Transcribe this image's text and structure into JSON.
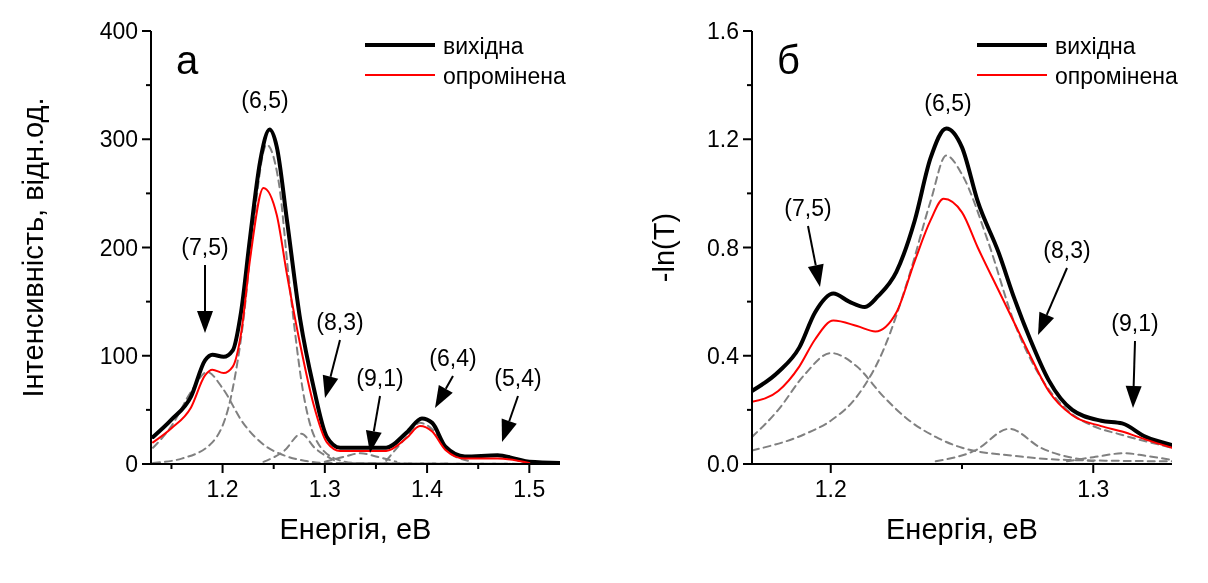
{
  "chart_data": [
    {
      "type": "line",
      "title": "а",
      "xlabel": "Енергія, еВ",
      "ylabel": "Інтенсивність, відн.од.",
      "xlim": [
        1.13,
        1.53
      ],
      "ylim": [
        0,
        400
      ],
      "xticks": [
        {
          "value": 1.15,
          "label": null
        },
        1.2,
        {
          "value": 1.25,
          "label": null
        },
        1.3,
        {
          "value": 1.35,
          "label": null
        },
        1.4,
        {
          "value": 1.45,
          "label": null
        },
        1.5
      ],
      "yticks": [
        0,
        {
          "value": 50,
          "label": null
        },
        100,
        {
          "value": 150,
          "label": null
        },
        200,
        {
          "value": 250,
          "label": null
        },
        300,
        {
          "value": 350,
          "label": null
        },
        400
      ],
      "legend": "top right",
      "series": [
        {
          "type": "line",
          "line_style": "dashed",
          "color": "#808080",
          "x": [
            1.132,
            1.15,
            1.17,
            1.185,
            1.2,
            1.22,
            1.24,
            1.26,
            1.28,
            1.3,
            1.53
          ],
          "values": [
            15,
            35,
            68,
            85,
            70,
            38,
            18,
            8,
            3,
            1,
            0
          ]
        },
        {
          "type": "line",
          "line_style": "dashed",
          "color": "#808080",
          "x": [
            1.132,
            1.16,
            1.19,
            1.21,
            1.22,
            1.23,
            1.243,
            1.255,
            1.265,
            1.28,
            1.29,
            1.31,
            1.33,
            1.53
          ],
          "values": [
            1,
            5,
            20,
            70,
            130,
            220,
            295,
            260,
            170,
            60,
            25,
            5,
            1,
            0
          ]
        },
        {
          "type": "line",
          "line_style": "dashed",
          "color": "#808080",
          "x": [
            1.24,
            1.26,
            1.277,
            1.29,
            1.31
          ],
          "values": [
            2,
            12,
            28,
            15,
            3
          ]
        },
        {
          "type": "line",
          "line_style": "dashed",
          "color": "#808080",
          "x": [
            1.3,
            1.32,
            1.335,
            1.35,
            1.37
          ],
          "values": [
            2,
            7,
            10,
            7,
            2
          ]
        },
        {
          "type": "line",
          "line_style": "dashed",
          "color": "#808080",
          "x": [
            1.36,
            1.38,
            1.393,
            1.405,
            1.42,
            1.44
          ],
          "values": [
            3,
            25,
            38,
            32,
            12,
            3
          ]
        },
        {
          "type": "line",
          "name": "вихідна",
          "color": "#000000",
          "x": [
            1.132,
            1.15,
            1.169,
            1.183,
            1.19,
            1.201,
            1.21,
            1.218,
            1.227,
            1.237,
            1.246,
            1.253,
            1.263,
            1.276,
            1.289,
            1.302,
            1.315,
            1.341,
            1.36,
            1.38,
            1.395,
            1.405,
            1.418,
            1.437,
            1.469,
            1.486,
            1.5,
            1.53
          ],
          "values": [
            25,
            41,
            62,
            96,
            101,
            99,
            105,
            140,
            210,
            281,
            309,
            293,
            225,
            133,
            71,
            25,
            15,
            15,
            15,
            29,
            42,
            38,
            16,
            7,
            8,
            5,
            2,
            1
          ]
        },
        {
          "type": "line",
          "name": "опромінена",
          "color": "#ff0000",
          "x": [
            1.132,
            1.15,
            1.169,
            1.183,
            1.19,
            1.201,
            1.21,
            1.218,
            1.227,
            1.24,
            1.253,
            1.263,
            1.276,
            1.289,
            1.302,
            1.315,
            1.341,
            1.36,
            1.38,
            1.393,
            1.405,
            1.418,
            1.437,
            1.469,
            1.5
          ],
          "values": [
            20,
            33,
            52,
            82,
            87,
            84,
            90,
            120,
            190,
            255,
            230,
            175,
            110,
            55,
            20,
            12,
            12,
            12,
            24,
            35,
            30,
            13,
            5,
            5,
            1
          ]
        }
      ],
      "annotations": [
        "(7,5)",
        "(6,5)",
        "(8,3)",
        "(9,1)",
        "(6,4)",
        "(5,4)"
      ]
    },
    {
      "type": "line",
      "title": "б",
      "xlabel": "Енергія, еВ",
      "ylabel": "-ln(T)",
      "xlim": [
        1.17,
        1.33
      ],
      "ylim": [
        0,
        1.6
      ],
      "xticks": [
        1.2,
        {
          "value": 1.25,
          "label": null
        },
        1.3
      ],
      "yticks": [
        {
          "value": 0,
          "label": "0.0"
        },
        {
          "value": 0.2,
          "label": null
        },
        0.4,
        {
          "value": 0.6,
          "label": null
        },
        0.8,
        {
          "value": 1,
          "label": null
        },
        1.2,
        {
          "value": 1.4,
          "label": null
        },
        1.6
      ],
      "legend": "top right",
      "series": [
        {
          "type": "line",
          "line_style": "dashed",
          "color": "#808080",
          "x": [
            1.17,
            1.18,
            1.19,
            1.2,
            1.21,
            1.22,
            1.23,
            1.24,
            1.25,
            1.27,
            1.29,
            1.33
          ],
          "values": [
            0.1,
            0.2,
            0.33,
            0.41,
            0.36,
            0.25,
            0.16,
            0.1,
            0.06,
            0.03,
            0.015,
            0.01
          ]
        },
        {
          "type": "line",
          "line_style": "dashed",
          "color": "#808080",
          "x": [
            1.17,
            1.19,
            1.2,
            1.21,
            1.22,
            1.23,
            1.238,
            1.244,
            1.25,
            1.26,
            1.27,
            1.28,
            1.29,
            1.3,
            1.31,
            1.33
          ],
          "values": [
            0.05,
            0.11,
            0.16,
            0.25,
            0.42,
            0.7,
            0.97,
            1.14,
            1.07,
            0.82,
            0.52,
            0.32,
            0.2,
            0.14,
            0.11,
            0.06
          ]
        },
        {
          "type": "line",
          "line_style": "dashed",
          "color": "#808080",
          "x": [
            1.24,
            1.255,
            1.268,
            1.28,
            1.3
          ],
          "values": [
            0.01,
            0.05,
            0.13,
            0.06,
            0.01
          ]
        },
        {
          "type": "line",
          "line_style": "dashed",
          "color": "#808080",
          "x": [
            1.29,
            1.3,
            1.312,
            1.32,
            1.33
          ],
          "values": [
            0.01,
            0.025,
            0.04,
            0.03,
            0.015
          ]
        },
        {
          "type": "line",
          "name": "вихідна",
          "color": "#000000",
          "x": [
            1.17,
            1.18,
            1.188,
            1.194,
            1.201,
            1.207,
            1.213,
            1.218,
            1.225,
            1.232,
            1.238,
            1.244,
            1.25,
            1.256,
            1.264,
            1.27,
            1.276,
            1.283,
            1.292,
            1.303,
            1.311,
            1.32,
            1.33
          ],
          "values": [
            0.27,
            0.34,
            0.43,
            0.56,
            0.63,
            0.6,
            0.58,
            0.62,
            0.71,
            0.9,
            1.13,
            1.24,
            1.17,
            0.97,
            0.78,
            0.61,
            0.46,
            0.31,
            0.2,
            0.16,
            0.15,
            0.1,
            0.07
          ]
        },
        {
          "type": "line",
          "name": "опромінена",
          "color": "#ff0000",
          "x": [
            1.17,
            1.18,
            1.188,
            1.194,
            1.201,
            1.21,
            1.217,
            1.225,
            1.232,
            1.238,
            1.243,
            1.25,
            1.256,
            1.264,
            1.27,
            1.276,
            1.283,
            1.292,
            1.303,
            1.311,
            1.32,
            1.33
          ],
          "values": [
            0.23,
            0.27,
            0.36,
            0.46,
            0.53,
            0.51,
            0.49,
            0.56,
            0.75,
            0.9,
            0.98,
            0.93,
            0.8,
            0.64,
            0.52,
            0.4,
            0.27,
            0.18,
            0.14,
            0.12,
            0.09,
            0.06
          ]
        }
      ],
      "annotations": [
        "(7,5)",
        "(6,5)",
        "(8,3)",
        "(9,1)"
      ]
    }
  ]
}
